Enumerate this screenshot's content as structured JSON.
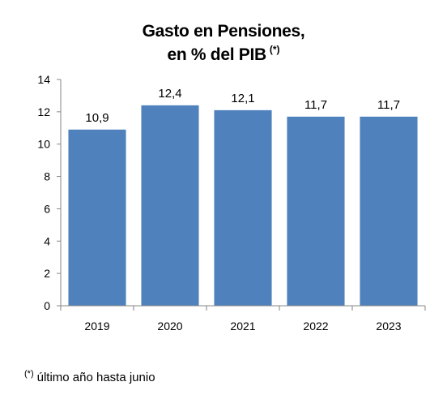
{
  "title_line1": "Gasto en Pensiones,",
  "title_line2": "en % del PIB",
  "title_mark": "(*)",
  "footnote_mark": "(*)",
  "footnote_text": "último año hasta junio",
  "colors": {
    "bar": "#4f81bd",
    "axis": "#868686"
  },
  "chart_data": {
    "type": "bar",
    "categories": [
      "2019",
      "2020",
      "2021",
      "2022",
      "2023"
    ],
    "values": [
      10.9,
      12.4,
      12.1,
      11.7,
      11.7
    ],
    "value_labels": [
      "10,9",
      "12,4",
      "12,1",
      "11,7",
      "11,7"
    ],
    "title": "Gasto en Pensiones, en % del PIB (*)",
    "xlabel": "",
    "ylabel": "",
    "ylim": [
      0,
      14
    ],
    "yticks": [
      0,
      2,
      4,
      6,
      8,
      10,
      12,
      14
    ],
    "grid": false,
    "legend": "none"
  }
}
